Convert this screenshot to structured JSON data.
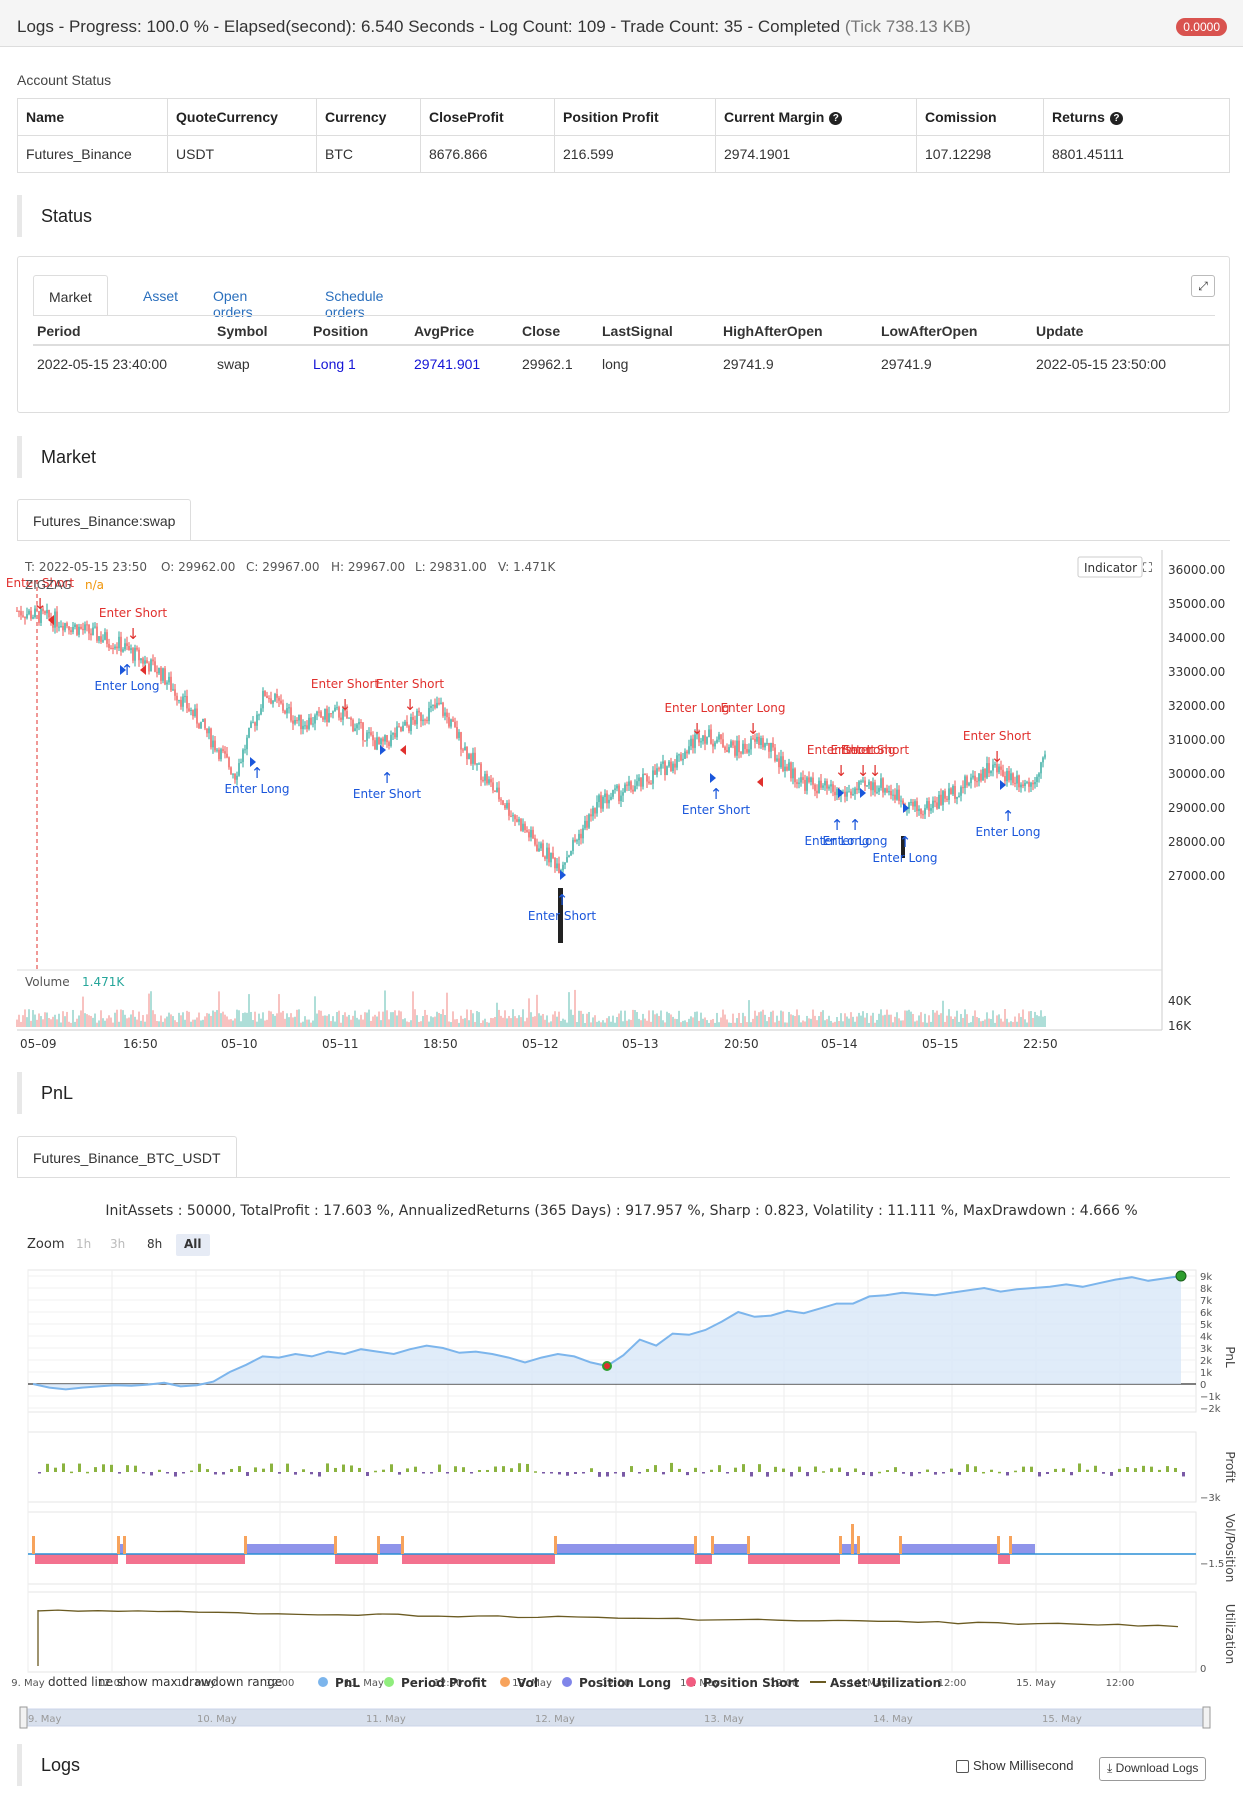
{
  "topbar": {
    "title": "Logs - Progress: 100.0 % - Elapsed(second): 6.540 Seconds - Log Count: 109 - Trade Count: 35 - Completed",
    "size": "(Tick 738.13 KB)",
    "badge": "0.0000"
  },
  "account": {
    "label": "Account Status",
    "headers": [
      "Name",
      "QuoteCurrency",
      "Currency",
      "CloseProfit",
      "Position Profit",
      "Current Margin",
      "Comission",
      "Returns"
    ],
    "row": [
      "Futures_Binance",
      "USDT",
      "BTC",
      "8676.866",
      "216.599",
      "2974.1901",
      "107.12298",
      "8801.45111"
    ]
  },
  "status_section": {
    "title": "Status",
    "tabs": [
      "Market",
      "Asset",
      "Open orders",
      "Schedule orders"
    ],
    "headers": [
      "Period",
      "Symbol",
      "Position",
      "AvgPrice",
      "Close",
      "LastSignal",
      "HighAfterOpen",
      "LowAfterOpen",
      "Update"
    ],
    "row": [
      "2022-05-15 23:40:00",
      "swap",
      "Long 1",
      "29741.901",
      "29962.1",
      "long",
      "29741.9",
      "29741.9",
      "2022-05-15 23:50:00"
    ]
  },
  "market_section": {
    "title": "Market",
    "tab": "Futures_Binance:swap",
    "ohlc": {
      "t": "T: 2022-05-15 23:50",
      "o": "O: 29962.00",
      "c": "C: 29967.00",
      "h": "H: 29967.00",
      "l": "L: 29831.00",
      "v": "V: 1.471K"
    },
    "indicator_btn": "Indicator",
    "overlay_label": "ZIGZAG",
    "overlay_value": "n/a",
    "volume_label": "Volume",
    "volume_value": "1.471K",
    "price_ticks": [
      "36000.00",
      "35000.00",
      "34000.00",
      "33000.00",
      "32000.00",
      "31000.00",
      "30000.00",
      "29000.00",
      "28000.00",
      "27000.00"
    ],
    "volume_ticks": [
      "40K",
      "16K"
    ],
    "time_ticks": [
      "05–09",
      "16:50",
      "05–10",
      "05–11",
      "18:50",
      "05–12",
      "05–13",
      "20:50",
      "05–14",
      "05–15",
      "22:50"
    ],
    "annotations": [
      {
        "text": "Enter Short"
      },
      {
        "text": "Enter Long"
      },
      {
        "text": "Enter Short"
      },
      {
        "text": "Enter Long"
      },
      {
        "text": "Enter Short"
      },
      {
        "text": "Enter Short"
      },
      {
        "text": "Enter Long"
      },
      {
        "text": "Enter Long"
      },
      {
        "text": "Enter Short"
      },
      {
        "text": "Enter Short"
      },
      {
        "text": "Enter Long"
      },
      {
        "text": "Enter Short"
      },
      {
        "text": "Enter Short"
      },
      {
        "text": "Enter Long"
      },
      {
        "text": "Enter Long"
      },
      {
        "text": "Enter Long"
      },
      {
        "text": "Enter Short"
      },
      {
        "text": "Enter Long"
      },
      {
        "text": "Enter Short"
      }
    ]
  },
  "pnl_section": {
    "title": "PnL",
    "tab": "Futures_Binance_BTC_USDT",
    "summary": "InitAssets : 50000, TotalProfit : 17.603 %, AnnualizedReturns (365 Days) : 917.957 %, Sharp : 0.823, Volatility : 11.111 %, MaxDrawdown : 4.666 %",
    "zoom_label": "Zoom",
    "zoom_buttons": [
      "1h",
      "3h",
      "8h",
      "All"
    ],
    "pnl_ticks": [
      "9k",
      "8k",
      "7k",
      "6k",
      "5k",
      "4k",
      "3k",
      "2k",
      "1k",
      "0",
      "−1k",
      "−2k"
    ],
    "profit_tick": "−3k",
    "vol_tick": "−1.5",
    "util_tick": "0",
    "pane_labels": [
      "PnL",
      "Profit",
      "Vol/Position",
      "Utilization"
    ],
    "time_ticks": [
      "9. May",
      "12:00",
      "10. May",
      "12:00",
      "11. May",
      "12:00",
      "12. May",
      "12:00",
      "13. May",
      "12:00",
      "14. May",
      "12:00",
      "15. May",
      "12:00"
    ],
    "navigator_ticks": [
      "9. May",
      "10. May",
      "11. May",
      "12. May",
      "13. May",
      "14. May",
      "15. May"
    ],
    "legend_note": "dotted line show max drawdown range",
    "legend": [
      {
        "label": "PnL",
        "color": "#7cb5ec"
      },
      {
        "label": "Period Profit",
        "color": "#90ed7d"
      },
      {
        "label": "Vol",
        "color": "#f7a35c"
      },
      {
        "label": "Position Long",
        "color": "#8085e9"
      },
      {
        "label": "Position Short",
        "color": "#f15c80"
      },
      {
        "label": "Asset Utilization",
        "color": "#6b5b22"
      }
    ],
    "pnl_series": [
      0,
      -300,
      -450,
      -300,
      -200,
      -100,
      -150,
      -50,
      100,
      -200,
      -100,
      200,
      1000,
      1600,
      2300,
      2200,
      2500,
      2300,
      2700,
      2500,
      2900,
      2700,
      2500,
      2900,
      3200,
      3000,
      2600,
      2700,
      2500,
      2200,
      1800,
      2200,
      2500,
      2300,
      1800,
      1500,
      2400,
      3700,
      3200,
      4200,
      4100,
      4500,
      5200,
      6000,
      5600,
      5700,
      6100,
      5900,
      6300,
      6700,
      6700,
      7300,
      7400,
      7600,
      7500,
      7400,
      7600,
      7800,
      8000,
      7700,
      7900,
      8000,
      8100,
      8300,
      8100,
      8400,
      8700,
      8900,
      8600,
      8800,
      9000
    ]
  },
  "logs_section": {
    "title": "Logs",
    "show_ms": "Show Millisecond",
    "download": "Download Logs"
  }
}
